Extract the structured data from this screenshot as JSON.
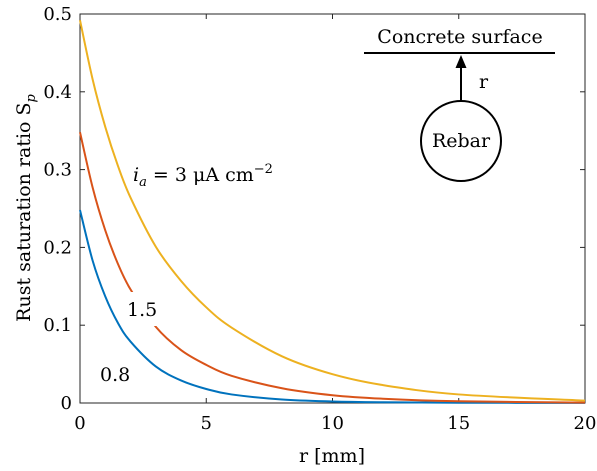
{
  "chart_data": {
    "type": "line",
    "xlabel": "r [mm]",
    "ylabel": "Rust saturation ratio S",
    "ylabel_sub": "p",
    "xlim": [
      0,
      20
    ],
    "ylim": [
      0,
      0.5
    ],
    "xticks": [
      0,
      5,
      10,
      15,
      20
    ],
    "yticks": [
      0,
      0.1,
      0.2,
      0.3,
      0.4,
      0.5
    ],
    "xtick_labels": [
      "0",
      "5",
      "10",
      "15",
      "20"
    ],
    "ytick_labels": [
      "0",
      "0.1",
      "0.2",
      "0.3",
      "0.4",
      "0.5"
    ],
    "grid": false,
    "series": [
      {
        "name": "0.8",
        "color": "#0072BD",
        "x": [
          0,
          0.5,
          1,
          1.5,
          2,
          3,
          4,
          5,
          6,
          8,
          10,
          12,
          15,
          20
        ],
        "y": [
          0.248,
          0.183,
          0.137,
          0.103,
          0.079,
          0.047,
          0.029,
          0.018,
          0.011,
          0.0045,
          0.002,
          0.001,
          0.0004,
          0.0001
        ]
      },
      {
        "name": "1.5",
        "color": "#D95319",
        "x": [
          0,
          0.5,
          1,
          1.5,
          2,
          3,
          4,
          5,
          6,
          8,
          10,
          12,
          15,
          20
        ],
        "y": [
          0.348,
          0.277,
          0.222,
          0.179,
          0.146,
          0.098,
          0.068,
          0.049,
          0.035,
          0.019,
          0.01,
          0.0055,
          0.0022,
          0.0005
        ]
      },
      {
        "name": "3",
        "color": "#EDB120",
        "x": [
          0,
          0.5,
          1,
          1.5,
          2,
          3,
          4,
          5,
          6,
          8,
          10,
          12,
          15,
          20
        ],
        "y": [
          0.492,
          0.416,
          0.355,
          0.305,
          0.264,
          0.201,
          0.157,
          0.123,
          0.097,
          0.06,
          0.037,
          0.023,
          0.011,
          0.003
        ]
      }
    ],
    "annotations": {
      "current_label": "i",
      "current_sub": "a",
      "current_value": " = 3 μA cm",
      "current_exp": "−2",
      "label_1_5": "1.5",
      "label_0_8": "0.8"
    },
    "inset": {
      "surface_label": "Concrete surface",
      "r_label": "r",
      "rebar_label": "Rebar"
    }
  }
}
